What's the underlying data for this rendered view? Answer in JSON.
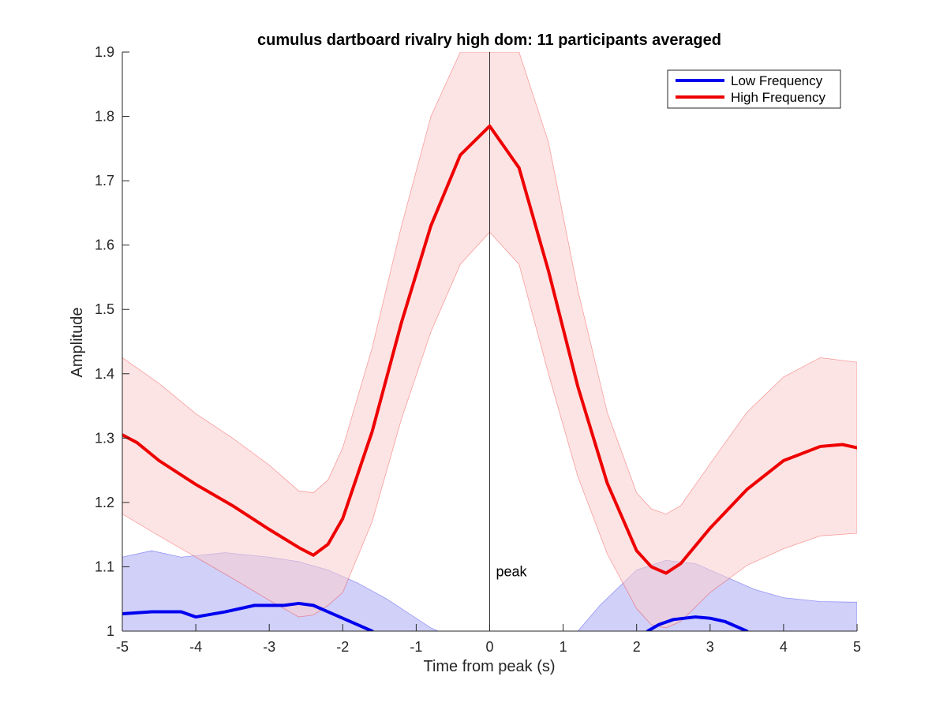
{
  "chart_data": {
    "type": "line",
    "title": "cumulus dartboard rivalry high dom: 11 participants averaged",
    "xlabel": "Time from peak (s)",
    "ylabel": "Amplitude",
    "xlim": [
      -5,
      5
    ],
    "ylim": [
      1,
      1.9
    ],
    "x_ticks": [
      -5,
      -4,
      -3,
      -2,
      -1,
      0,
      1,
      2,
      3,
      4,
      5
    ],
    "x_tick_labels": [
      "-5",
      "-4",
      "-3",
      "-2",
      "-1",
      "0",
      "1",
      "2",
      "3",
      "4",
      "5"
    ],
    "y_ticks": [
      1,
      1.1,
      1.2,
      1.3,
      1.4,
      1.5,
      1.6,
      1.7,
      1.8,
      1.9
    ],
    "y_tick_labels": [
      "1",
      "1.1",
      "1.2",
      "1.3",
      "1.4",
      "1.5",
      "1.6",
      "1.7",
      "1.8",
      "1.9"
    ],
    "grid": false,
    "legend_position": "top-right",
    "annotations": [
      {
        "type": "vline",
        "x": 0,
        "label": "peak",
        "label_y": 1.085
      }
    ],
    "series": [
      {
        "name": "Low Frequency",
        "color": "#0000ee",
        "band_color": "#a9aaf4",
        "x": [
          -5.0,
          -4.6,
          -4.2,
          -4.0,
          -3.6,
          -3.2,
          -2.8,
          -2.6,
          -2.4,
          -2.2,
          -2.0,
          -1.8,
          -1.6,
          2.15,
          2.3,
          2.5,
          2.8,
          3.0,
          3.2,
          3.5
        ],
        "y": [
          1.027,
          1.03,
          1.03,
          1.022,
          1.03,
          1.04,
          1.04,
          1.043,
          1.04,
          1.03,
          1.02,
          1.01,
          1.0,
          1.0,
          1.01,
          1.018,
          1.022,
          1.02,
          1.015,
          1.0
        ],
        "band_x": [
          -5.0,
          -4.6,
          -4.2,
          -3.6,
          -3.0,
          -2.6,
          -2.2,
          -1.8,
          -1.4,
          -1.0,
          -0.8,
          -0.7,
          1.2,
          1.5,
          2.0,
          2.4,
          2.8,
          3.2,
          3.6,
          4.0,
          4.5,
          5.0
        ],
        "band_upper": [
          1.115,
          1.125,
          1.115,
          1.122,
          1.115,
          1.108,
          1.095,
          1.075,
          1.05,
          1.02,
          1.005,
          1.0,
          1.0,
          1.04,
          1.095,
          1.11,
          1.105,
          1.085,
          1.065,
          1.052,
          1.046,
          1.045
        ],
        "band_lower": [
          1.0,
          1.0,
          1.0,
          1.0,
          1.0,
          1.0,
          1.0,
          1.0,
          1.0,
          1.0,
          1.0,
          1.0,
          1.0,
          1.0,
          1.0,
          1.0,
          1.0,
          1.0,
          1.0,
          1.0,
          1.0,
          1.0
        ]
      },
      {
        "name": "High Frequency",
        "color": "#ee0000",
        "band_color": "#fbcece",
        "x": [
          -5.0,
          -4.8,
          -4.5,
          -4.0,
          -3.5,
          -3.0,
          -2.6,
          -2.4,
          -2.2,
          -2.0,
          -1.6,
          -1.2,
          -0.8,
          -0.4,
          0.0,
          0.4,
          0.8,
          1.2,
          1.6,
          2.0,
          2.2,
          2.4,
          2.6,
          3.0,
          3.5,
          4.0,
          4.5,
          4.8,
          5.0
        ],
        "y": [
          1.305,
          1.293,
          1.265,
          1.228,
          1.195,
          1.158,
          1.13,
          1.118,
          1.135,
          1.175,
          1.31,
          1.48,
          1.63,
          1.74,
          1.785,
          1.72,
          1.56,
          1.38,
          1.23,
          1.125,
          1.1,
          1.09,
          1.105,
          1.16,
          1.22,
          1.265,
          1.287,
          1.29,
          1.285
        ],
        "band_x": [
          -5.0,
          -4.5,
          -4.0,
          -3.5,
          -3.0,
          -2.6,
          -2.4,
          -2.2,
          -2.0,
          -1.6,
          -1.2,
          -0.8,
          -0.4,
          0.0,
          0.4,
          0.8,
          1.2,
          1.6,
          2.0,
          2.2,
          2.4,
          2.6,
          3.0,
          3.5,
          4.0,
          4.5,
          5.0
        ],
        "band_upper": [
          1.425,
          1.385,
          1.338,
          1.3,
          1.258,
          1.218,
          1.215,
          1.235,
          1.285,
          1.44,
          1.63,
          1.8,
          1.9,
          1.9,
          1.9,
          1.76,
          1.53,
          1.34,
          1.215,
          1.19,
          1.182,
          1.195,
          1.26,
          1.34,
          1.395,
          1.425,
          1.418
        ],
        "band_lower": [
          1.182,
          1.148,
          1.115,
          1.082,
          1.048,
          1.022,
          1.025,
          1.04,
          1.06,
          1.17,
          1.33,
          1.465,
          1.57,
          1.62,
          1.57,
          1.4,
          1.24,
          1.12,
          1.035,
          1.01,
          1.005,
          1.015,
          1.06,
          1.102,
          1.128,
          1.148,
          1.152
        ]
      }
    ]
  }
}
